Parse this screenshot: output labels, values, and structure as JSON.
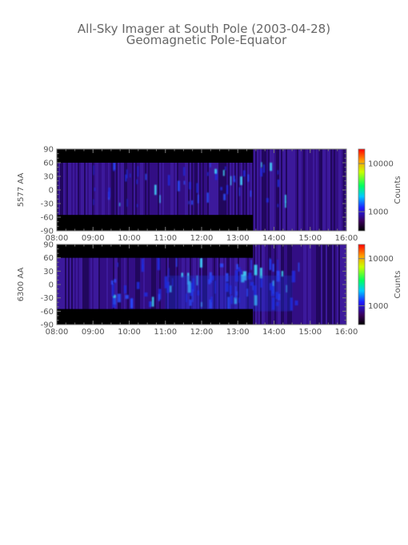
{
  "title": "All-Sky Imager at South Pole (2003-04-28)",
  "subtitle": "Geomagnetic Pole-Equator",
  "chart_data": [
    {
      "type": "heatmap",
      "ylabel": "5577 AA",
      "x_ticks": [
        "08:00",
        "09:00",
        "10:00",
        "11:00",
        "12:00",
        "13:00",
        "14:00",
        "15:00",
        "16:00"
      ],
      "xlim": [
        "08:00",
        "16:00"
      ],
      "y_ticks": [
        90,
        60,
        30,
        0,
        -30,
        -60,
        -90
      ],
      "ylim": [
        -90,
        90
      ],
      "colorbar": {
        "label": "Counts",
        "ticks": [
          10000,
          1000
        ],
        "tick_labels": [
          "10000",
          "1000"
        ],
        "range": [
          400,
          20000
        ],
        "scale": "log"
      },
      "no_data_blocks": [
        {
          "x_start": "08:00",
          "x_end": "13:25",
          "y_min": 60,
          "y_max": 90
        },
        {
          "x_start": "08:00",
          "x_end": "13:25",
          "y_min": -90,
          "y_max": -55
        }
      ]
    },
    {
      "type": "heatmap",
      "ylabel": "6300 AA",
      "x_ticks": [
        "08:00",
        "09:00",
        "10:00",
        "11:00",
        "12:00",
        "13:00",
        "14:00",
        "15:00",
        "16:00"
      ],
      "xlim": [
        "08:00",
        "16:00"
      ],
      "y_ticks": [
        90,
        60,
        30,
        0,
        -30,
        -60,
        -90
      ],
      "ylim": [
        -90,
        90
      ],
      "colorbar": {
        "label": "Counts",
        "ticks": [
          10000,
          1000
        ],
        "tick_labels": [
          "10000",
          "1000"
        ],
        "range": [
          400,
          20000
        ],
        "scale": "log"
      },
      "no_data_blocks": [
        {
          "x_start": "08:00",
          "x_end": "13:25",
          "y_min": 60,
          "y_max": 90
        },
        {
          "x_start": "08:00",
          "x_end": "13:25",
          "y_min": -90,
          "y_max": -55
        }
      ]
    }
  ]
}
